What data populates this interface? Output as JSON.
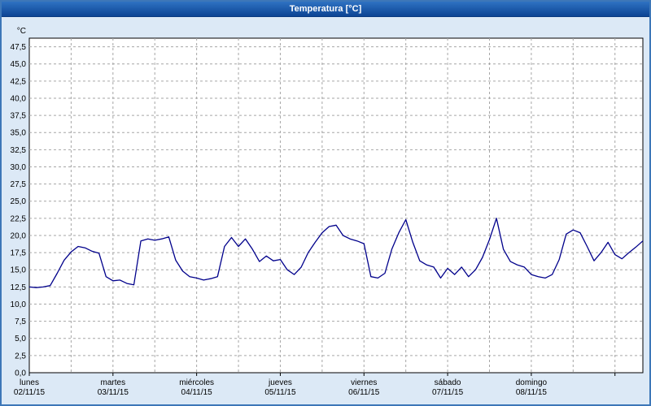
{
  "window": {
    "title": "Temperatura [°C]"
  },
  "colors": {
    "titlebar": "#0c4494",
    "frame": "#3d77b8",
    "background": "#dce9f6",
    "plot_background": "#ffffff",
    "grid": "#a6a6a6",
    "line": "#00008b"
  },
  "chart_data": {
    "type": "line",
    "title": "Temperatura [°C]",
    "grid": true,
    "legend": "none",
    "y_axis": {
      "unit": "°C",
      "min": 0,
      "max": 48.75,
      "grid_step": 2.5,
      "tick_labels": [
        "0,0",
        "2,5",
        "5,0",
        "7,5",
        "10,0",
        "12,5",
        "15,0",
        "17,5",
        "20,0",
        "22,5",
        "25,0",
        "27,5",
        "30,0",
        "32,5",
        "35,0",
        "37,5",
        "40,0",
        "42,5",
        "45,0",
        "47,5"
      ]
    },
    "x_axis": {
      "total_hours": 176,
      "hours_per_point": 2,
      "days": [
        {
          "weekday": "lunes",
          "date": "02/11/15"
        },
        {
          "weekday": "martes",
          "date": "03/11/15"
        },
        {
          "weekday": "miércoles",
          "date": "04/11/15"
        },
        {
          "weekday": "jueves",
          "date": "05/11/15"
        },
        {
          "weekday": "viernes",
          "date": "06/11/15"
        },
        {
          "weekday": "sábado",
          "date": "07/11/15"
        },
        {
          "weekday": "domingo",
          "date": "08/11/15"
        }
      ]
    },
    "series": [
      {
        "name": "Temperatura",
        "color": "#00008b",
        "values": [
          12.5,
          12.4,
          12.5,
          12.7,
          14.5,
          16.4,
          17.6,
          18.4,
          18.2,
          17.7,
          17.4,
          14.0,
          13.4,
          13.5,
          13.0,
          12.8,
          19.2,
          19.5,
          19.3,
          19.5,
          19.8,
          16.4,
          14.8,
          14.0,
          13.8,
          13.5,
          13.7,
          14.0,
          18.4,
          19.7,
          18.4,
          19.5,
          18.0,
          16.2,
          17.0,
          16.3,
          16.5,
          15.0,
          14.3,
          15.4,
          17.5,
          19.0,
          20.4,
          21.3,
          21.5,
          20.0,
          19.5,
          19.2,
          18.8,
          14.0,
          13.8,
          14.5,
          18.0,
          20.4,
          22.3,
          19.0,
          16.3,
          15.7,
          15.4,
          13.8,
          15.2,
          14.3,
          15.4,
          14.0,
          15.0,
          16.8,
          19.4,
          22.5,
          18.0,
          16.2,
          15.7,
          15.4,
          14.3,
          14.0,
          13.8,
          14.3,
          16.5,
          20.2,
          20.8,
          20.4,
          18.4,
          16.3,
          17.5,
          19.0,
          17.2,
          16.6,
          17.5,
          18.3,
          19.2
        ]
      }
    ]
  }
}
